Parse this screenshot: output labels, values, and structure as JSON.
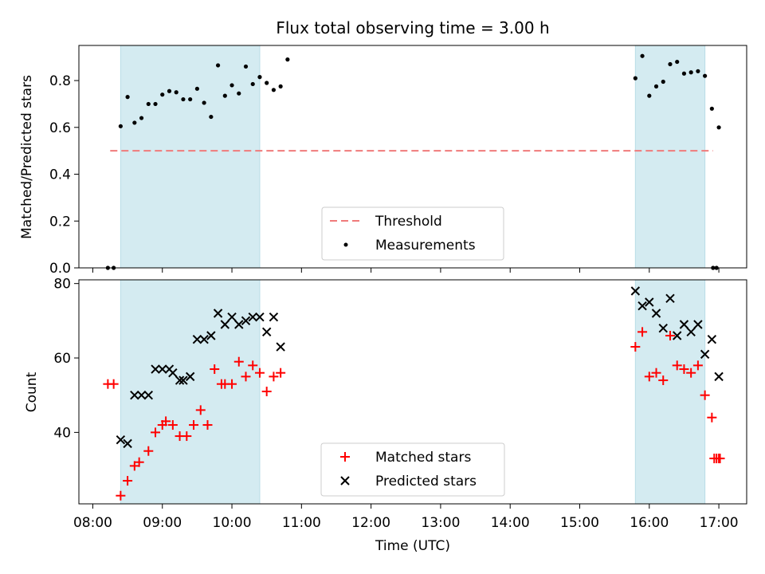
{
  "chart_data": {
    "title": "Flux total observing time = 3.00 h",
    "xlabel": "Time (UTC)",
    "x_ticks": [
      "08:00",
      "09:00",
      "10:00",
      "11:00",
      "12:00",
      "13:00",
      "14:00",
      "15:00",
      "16:00",
      "17:00"
    ],
    "x_range": [
      "07:48",
      "17:24"
    ],
    "observing_windows": [
      [
        "08:24",
        "10:24"
      ],
      [
        "15:48",
        "16:48"
      ]
    ],
    "colors": {
      "window": "#d4ebf1",
      "threshold": "#f07b7b",
      "measurements": "#000000",
      "matched": "#ff0000",
      "predicted": "#000000"
    },
    "top": {
      "type": "scatter",
      "ylabel": "Matched/Predicted stars",
      "ylim": [
        0,
        0.95
      ],
      "y_ticks": [
        "0.0",
        "0.2",
        "0.4",
        "0.6",
        "0.8"
      ],
      "threshold": {
        "value": 0.5,
        "x_from": "08:15",
        "x_to": "16:55"
      },
      "legend": {
        "threshold": "Threshold",
        "measurements": "Measurements"
      },
      "measurements": [
        [
          "08:13",
          0.0
        ],
        [
          "08:18",
          0.0
        ],
        [
          "08:24",
          0.605
        ],
        [
          "08:30",
          0.73
        ],
        [
          "08:36",
          0.62
        ],
        [
          "08:42",
          0.64
        ],
        [
          "08:48",
          0.7
        ],
        [
          "08:54",
          0.7
        ],
        [
          "09:00",
          0.74
        ],
        [
          "09:06",
          0.755
        ],
        [
          "09:12",
          0.75
        ],
        [
          "09:18",
          0.72
        ],
        [
          "09:24",
          0.72
        ],
        [
          "09:30",
          0.765
        ],
        [
          "09:36",
          0.705
        ],
        [
          "09:42",
          0.645
        ],
        [
          "09:48",
          0.865
        ],
        [
          "09:54",
          0.735
        ],
        [
          "10:00",
          0.78
        ],
        [
          "10:06",
          0.745
        ],
        [
          "10:12",
          0.86
        ],
        [
          "10:18",
          0.785
        ],
        [
          "10:24",
          0.815
        ],
        [
          "10:30",
          0.79
        ],
        [
          "10:36",
          0.76
        ],
        [
          "10:42",
          0.775
        ],
        [
          "10:48",
          0.89
        ],
        [
          "15:48",
          0.81
        ],
        [
          "15:54",
          0.905
        ],
        [
          "16:00",
          0.735
        ],
        [
          "16:06",
          0.775
        ],
        [
          "16:12",
          0.795
        ],
        [
          "16:18",
          0.87
        ],
        [
          "16:24",
          0.88
        ],
        [
          "16:30",
          0.83
        ],
        [
          "16:36",
          0.835
        ],
        [
          "16:42",
          0.84
        ],
        [
          "16:48",
          0.82
        ],
        [
          "16:54",
          0.68
        ],
        [
          "17:00",
          0.6
        ],
        [
          "16:55",
          0.0
        ],
        [
          "16:58",
          0.0
        ]
      ]
    },
    "bottom": {
      "type": "scatter",
      "ylabel": "Count",
      "ylim": [
        20.8,
        81
      ],
      "y_ticks": [
        "40",
        "60",
        "80"
      ],
      "legend": {
        "matched": "Matched stars",
        "predicted": "Predicted stars"
      },
      "matched": [
        [
          "08:13",
          53
        ],
        [
          "08:18",
          53
        ],
        [
          "08:24",
          23
        ],
        [
          "08:30",
          27
        ],
        [
          "08:36",
          31
        ],
        [
          "08:40",
          32
        ],
        [
          "08:48",
          35
        ],
        [
          "08:54",
          40
        ],
        [
          "09:00",
          42
        ],
        [
          "09:03",
          43
        ],
        [
          "09:09",
          42
        ],
        [
          "09:15",
          39
        ],
        [
          "09:21",
          39
        ],
        [
          "09:27",
          42
        ],
        [
          "09:33",
          46
        ],
        [
          "09:39",
          42
        ],
        [
          "09:45",
          57
        ],
        [
          "09:51",
          53
        ],
        [
          "09:54",
          53
        ],
        [
          "10:00",
          53
        ],
        [
          "10:06",
          59
        ],
        [
          "10:12",
          55
        ],
        [
          "10:18",
          58
        ],
        [
          "10:24",
          56
        ],
        [
          "10:30",
          51
        ],
        [
          "10:36",
          55
        ],
        [
          "10:42",
          56
        ],
        [
          "15:48",
          63
        ],
        [
          "15:54",
          67
        ],
        [
          "16:00",
          55
        ],
        [
          "16:06",
          56
        ],
        [
          "16:12",
          54
        ],
        [
          "16:18",
          66
        ],
        [
          "16:24",
          58
        ],
        [
          "16:30",
          57
        ],
        [
          "16:36",
          56
        ],
        [
          "16:42",
          58
        ],
        [
          "16:48",
          50
        ],
        [
          "16:54",
          44
        ],
        [
          "17:00",
          33
        ],
        [
          "16:56",
          33
        ],
        [
          "17:01",
          33
        ],
        [
          "16:58",
          33
        ]
      ],
      "predicted": [
        [
          "08:24",
          38
        ],
        [
          "08:30",
          37
        ],
        [
          "08:36",
          50
        ],
        [
          "08:42",
          50
        ],
        [
          "08:48",
          50
        ],
        [
          "08:54",
          57
        ],
        [
          "09:00",
          57
        ],
        [
          "09:06",
          57
        ],
        [
          "09:09",
          56
        ],
        [
          "09:15",
          54
        ],
        [
          "09:18",
          54
        ],
        [
          "09:24",
          55
        ],
        [
          "09:30",
          65
        ],
        [
          "09:36",
          65
        ],
        [
          "09:42",
          66
        ],
        [
          "09:48",
          72
        ],
        [
          "09:54",
          69
        ],
        [
          "10:00",
          71
        ],
        [
          "10:06",
          69
        ],
        [
          "10:12",
          70
        ],
        [
          "10:18",
          71
        ],
        [
          "10:24",
          71
        ],
        [
          "10:30",
          67
        ],
        [
          "10:36",
          71
        ],
        [
          "10:42",
          63
        ],
        [
          "15:48",
          78
        ],
        [
          "15:54",
          74
        ],
        [
          "16:00",
          75
        ],
        [
          "16:06",
          72
        ],
        [
          "16:12",
          68
        ],
        [
          "16:18",
          76
        ],
        [
          "16:24",
          66
        ],
        [
          "16:30",
          69
        ],
        [
          "16:36",
          67
        ],
        [
          "16:42",
          69
        ],
        [
          "16:48",
          61
        ],
        [
          "16:54",
          65
        ],
        [
          "17:00",
          55
        ]
      ]
    }
  }
}
